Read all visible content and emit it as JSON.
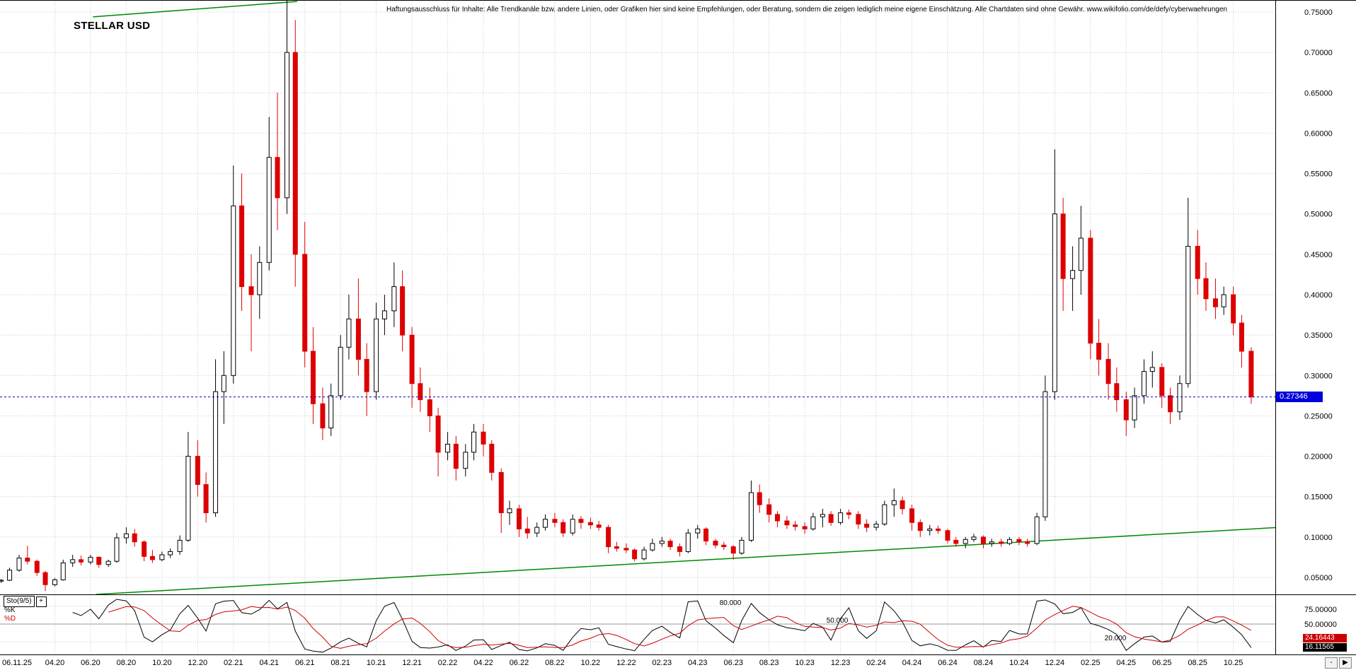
{
  "header": {
    "title": "STELLAR USD",
    "disclaimer": "Haftungsausschluss für Inhalte: Alle Trendkanäle bzw. andere Linien, oder Grafiken hier sind keine Empfehlungen, oder Beratung, sondern die zeigen lediglich meine eigene Einschätzung. Alle Chartdaten sind ohne Gewähr. www.wikifolio.com/de/defy/cyberwaehrungen"
  },
  "price_axis": {
    "tick_labels": [
      "0.75000",
      "0.70000",
      "0.65000",
      "0.60000",
      "0.55000",
      "0.50000",
      "0.45000",
      "0.40000",
      "0.35000",
      "0.30000",
      "0.25000",
      "0.20000",
      "0.15000",
      "0.10000",
      "0.05000"
    ],
    "current_price_label": "0.27346"
  },
  "time_axis": {
    "first_label": "06.11.25",
    "tick_labels": [
      "04.20",
      "06.20",
      "08.20",
      "10.20",
      "12.20",
      "02.21",
      "04.21",
      "06.21",
      "08.21",
      "10.21",
      "12.21",
      "02.22",
      "04.22",
      "06.22",
      "08.22",
      "10.22",
      "12.22",
      "02.23",
      "04.23",
      "06.23",
      "08.23",
      "10.23",
      "12.23",
      "02.24",
      "04.24",
      "06.24",
      "08.24",
      "10.24",
      "12.24",
      "02.25",
      "04.25",
      "06.25",
      "08.25",
      "10.25"
    ],
    "minus_control": "-",
    "arrow_control": "▶"
  },
  "indicator_panel": {
    "name": "Sto(9/5)",
    "expand_button": "+",
    "k_label": "%K",
    "d_label": "%D",
    "level_labels": [
      "80.000",
      "50.000",
      "20.000"
    ],
    "axis_labels": [
      "75.00000",
      "50.00000"
    ],
    "d_value": "24.16443",
    "k_value": "16.11565"
  },
  "colors": {
    "up": "#000000",
    "down": "#dd0000",
    "grid": "#c8c8c8",
    "trend": "#008800",
    "hline": "#0000cc",
    "price_tag_bg": "#0000dd",
    "k_line": "#000000",
    "d_line": "#cc0000",
    "mid_line": "#999999"
  },
  "chart_data": {
    "type": "candlestick",
    "title": "STELLAR USD",
    "ylim": [
      0.029,
      0.765
    ],
    "x_origin": "2020-01-06",
    "hline": 0.27346,
    "grid": true,
    "legend_position": "none",
    "trendlines": [
      {
        "from": [
          "2020-06-05",
          0.744
        ],
        "to": [
          "2021-05-18",
          0.763
        ]
      },
      {
        "from": [
          "2020-06-10",
          0.029
        ],
        "to": [
          "2025-12-20",
          0.112
        ]
      }
    ],
    "indicator": {
      "type": "stochastic",
      "period": 9,
      "smooth": 5,
      "levels": [
        80,
        50,
        20
      ],
      "k_last": 16.11565,
      "d_last": 24.16443
    },
    "candles": [
      [
        "2020-01-01",
        0.0455,
        0.048,
        0.043,
        0.0465
      ],
      [
        "2020-01-15",
        0.0465,
        0.062,
        0.0455,
        0.059
      ],
      [
        "2020-02-01",
        0.059,
        0.078,
        0.057,
        0.074
      ],
      [
        "2020-02-15",
        0.074,
        0.089,
        0.066,
        0.07
      ],
      [
        "2020-03-01",
        0.07,
        0.072,
        0.052,
        0.056
      ],
      [
        "2020-03-15",
        0.056,
        0.058,
        0.033,
        0.041
      ],
      [
        "2020-04-01",
        0.041,
        0.049,
        0.039,
        0.047
      ],
      [
        "2020-04-15",
        0.047,
        0.072,
        0.046,
        0.068
      ],
      [
        "2020-05-01",
        0.068,
        0.078,
        0.063,
        0.072
      ],
      [
        "2020-05-15",
        0.072,
        0.077,
        0.065,
        0.069
      ],
      [
        "2020-06-01",
        0.069,
        0.078,
        0.066,
        0.075
      ],
      [
        "2020-06-15",
        0.075,
        0.076,
        0.062,
        0.066
      ],
      [
        "2020-07-01",
        0.066,
        0.072,
        0.063,
        0.07
      ],
      [
        "2020-07-15",
        0.07,
        0.105,
        0.068,
        0.099
      ],
      [
        "2020-08-01",
        0.099,
        0.112,
        0.092,
        0.104
      ],
      [
        "2020-08-15",
        0.104,
        0.11,
        0.088,
        0.094
      ],
      [
        "2020-09-01",
        0.094,
        0.096,
        0.07,
        0.076
      ],
      [
        "2020-09-15",
        0.076,
        0.084,
        0.068,
        0.072
      ],
      [
        "2020-10-01",
        0.072,
        0.082,
        0.07,
        0.078
      ],
      [
        "2020-10-15",
        0.078,
        0.086,
        0.074,
        0.082
      ],
      [
        "2020-11-01",
        0.082,
        0.102,
        0.078,
        0.096
      ],
      [
        "2020-11-15",
        0.096,
        0.23,
        0.094,
        0.2
      ],
      [
        "2020-12-01",
        0.2,
        0.22,
        0.15,
        0.165
      ],
      [
        "2020-12-15",
        0.165,
        0.18,
        0.118,
        0.13
      ],
      [
        "2021-01-01",
        0.13,
        0.32,
        0.125,
        0.28
      ],
      [
        "2021-01-15",
        0.28,
        0.33,
        0.24,
        0.3
      ],
      [
        "2021-02-01",
        0.3,
        0.56,
        0.29,
        0.51
      ],
      [
        "2021-02-15",
        0.51,
        0.55,
        0.38,
        0.41
      ],
      [
        "2021-03-01",
        0.41,
        0.45,
        0.33,
        0.4
      ],
      [
        "2021-03-15",
        0.4,
        0.46,
        0.37,
        0.44
      ],
      [
        "2021-04-01",
        0.44,
        0.62,
        0.43,
        0.57
      ],
      [
        "2021-04-15",
        0.57,
        0.65,
        0.48,
        0.52
      ],
      [
        "2021-05-01",
        0.52,
        0.79,
        0.5,
        0.7
      ],
      [
        "2021-05-15",
        0.7,
        0.74,
        0.41,
        0.45
      ],
      [
        "2021-06-01",
        0.45,
        0.49,
        0.31,
        0.33
      ],
      [
        "2021-06-15",
        0.33,
        0.36,
        0.24,
        0.265
      ],
      [
        "2021-07-01",
        0.265,
        0.285,
        0.22,
        0.235
      ],
      [
        "2021-07-15",
        0.235,
        0.29,
        0.225,
        0.275
      ],
      [
        "2021-08-01",
        0.275,
        0.35,
        0.27,
        0.335
      ],
      [
        "2021-08-15",
        0.335,
        0.4,
        0.32,
        0.37
      ],
      [
        "2021-09-01",
        0.37,
        0.42,
        0.3,
        0.32
      ],
      [
        "2021-09-15",
        0.32,
        0.34,
        0.25,
        0.28
      ],
      [
        "2021-10-01",
        0.28,
        0.39,
        0.27,
        0.37
      ],
      [
        "2021-10-15",
        0.37,
        0.4,
        0.35,
        0.38
      ],
      [
        "2021-11-01",
        0.38,
        0.44,
        0.36,
        0.41
      ],
      [
        "2021-11-15",
        0.41,
        0.43,
        0.33,
        0.35
      ],
      [
        "2021-12-01",
        0.35,
        0.36,
        0.26,
        0.29
      ],
      [
        "2021-12-15",
        0.29,
        0.31,
        0.255,
        0.27
      ],
      [
        "2022-01-01",
        0.27,
        0.285,
        0.23,
        0.25
      ],
      [
        "2022-01-15",
        0.25,
        0.26,
        0.175,
        0.205
      ],
      [
        "2022-02-01",
        0.205,
        0.23,
        0.195,
        0.215
      ],
      [
        "2022-02-15",
        0.215,
        0.225,
        0.17,
        0.185
      ],
      [
        "2022-03-01",
        0.185,
        0.215,
        0.175,
        0.205
      ],
      [
        "2022-03-15",
        0.205,
        0.24,
        0.195,
        0.23
      ],
      [
        "2022-04-01",
        0.23,
        0.24,
        0.2,
        0.215
      ],
      [
        "2022-04-15",
        0.215,
        0.22,
        0.17,
        0.18
      ],
      [
        "2022-05-01",
        0.18,
        0.185,
        0.105,
        0.13
      ],
      [
        "2022-05-15",
        0.13,
        0.145,
        0.115,
        0.135
      ],
      [
        "2022-06-01",
        0.135,
        0.14,
        0.1,
        0.11
      ],
      [
        "2022-06-15",
        0.11,
        0.125,
        0.098,
        0.105
      ],
      [
        "2022-07-01",
        0.105,
        0.118,
        0.1,
        0.112
      ],
      [
        "2022-07-15",
        0.112,
        0.128,
        0.108,
        0.122
      ],
      [
        "2022-08-01",
        0.122,
        0.13,
        0.112,
        0.118
      ],
      [
        "2022-08-15",
        0.118,
        0.122,
        0.1,
        0.105
      ],
      [
        "2022-09-01",
        0.105,
        0.128,
        0.102,
        0.122
      ],
      [
        "2022-09-15",
        0.122,
        0.126,
        0.11,
        0.118
      ],
      [
        "2022-10-01",
        0.118,
        0.124,
        0.11,
        0.115
      ],
      [
        "2022-10-15",
        0.115,
        0.12,
        0.108,
        0.112
      ],
      [
        "2022-11-01",
        0.112,
        0.115,
        0.08,
        0.088
      ],
      [
        "2022-11-15",
        0.088,
        0.094,
        0.082,
        0.086
      ],
      [
        "2022-12-01",
        0.086,
        0.092,
        0.08,
        0.084
      ],
      [
        "2022-12-15",
        0.084,
        0.086,
        0.07,
        0.073
      ],
      [
        "2023-01-01",
        0.073,
        0.088,
        0.071,
        0.084
      ],
      [
        "2023-01-15",
        0.084,
        0.098,
        0.082,
        0.092
      ],
      [
        "2023-02-01",
        0.092,
        0.1,
        0.088,
        0.095
      ],
      [
        "2023-02-15",
        0.095,
        0.098,
        0.084,
        0.088
      ],
      [
        "2023-03-01",
        0.088,
        0.092,
        0.076,
        0.082
      ],
      [
        "2023-03-15",
        0.082,
        0.11,
        0.08,
        0.105
      ],
      [
        "2023-04-01",
        0.105,
        0.115,
        0.098,
        0.11
      ],
      [
        "2023-04-15",
        0.11,
        0.112,
        0.09,
        0.095
      ],
      [
        "2023-05-01",
        0.095,
        0.098,
        0.086,
        0.09
      ],
      [
        "2023-05-15",
        0.09,
        0.094,
        0.084,
        0.088
      ],
      [
        "2023-06-01",
        0.088,
        0.09,
        0.072,
        0.08
      ],
      [
        "2023-06-15",
        0.08,
        0.1,
        0.078,
        0.096
      ],
      [
        "2023-07-01",
        0.096,
        0.17,
        0.094,
        0.155
      ],
      [
        "2023-07-15",
        0.155,
        0.165,
        0.13,
        0.14
      ],
      [
        "2023-08-01",
        0.14,
        0.148,
        0.118,
        0.128
      ],
      [
        "2023-08-15",
        0.128,
        0.132,
        0.112,
        0.12
      ],
      [
        "2023-09-01",
        0.12,
        0.126,
        0.11,
        0.115
      ],
      [
        "2023-09-15",
        0.115,
        0.12,
        0.108,
        0.113
      ],
      [
        "2023-10-01",
        0.113,
        0.118,
        0.104,
        0.11
      ],
      [
        "2023-10-15",
        0.11,
        0.13,
        0.108,
        0.125
      ],
      [
        "2023-11-01",
        0.125,
        0.135,
        0.112,
        0.128
      ],
      [
        "2023-11-15",
        0.128,
        0.132,
        0.114,
        0.118
      ],
      [
        "2023-12-01",
        0.118,
        0.135,
        0.115,
        0.13
      ],
      [
        "2023-12-15",
        0.13,
        0.134,
        0.122,
        0.128
      ],
      [
        "2024-01-01",
        0.128,
        0.132,
        0.11,
        0.116
      ],
      [
        "2024-01-15",
        0.116,
        0.122,
        0.106,
        0.112
      ],
      [
        "2024-02-01",
        0.112,
        0.12,
        0.108,
        0.116
      ],
      [
        "2024-02-15",
        0.116,
        0.145,
        0.114,
        0.14
      ],
      [
        "2024-03-01",
        0.14,
        0.16,
        0.125,
        0.145
      ],
      [
        "2024-03-15",
        0.145,
        0.15,
        0.128,
        0.135
      ],
      [
        "2024-04-01",
        0.135,
        0.14,
        0.108,
        0.118
      ],
      [
        "2024-04-15",
        0.118,
        0.122,
        0.1,
        0.108
      ],
      [
        "2024-05-01",
        0.108,
        0.115,
        0.102,
        0.11
      ],
      [
        "2024-05-15",
        0.11,
        0.114,
        0.104,
        0.108
      ],
      [
        "2024-06-01",
        0.108,
        0.11,
        0.092,
        0.096
      ],
      [
        "2024-06-15",
        0.096,
        0.1,
        0.088,
        0.092
      ],
      [
        "2024-07-01",
        0.092,
        0.1,
        0.086,
        0.097
      ],
      [
        "2024-07-15",
        0.097,
        0.104,
        0.094,
        0.1
      ],
      [
        "2024-08-01",
        0.1,
        0.102,
        0.086,
        0.092
      ],
      [
        "2024-08-15",
        0.092,
        0.098,
        0.088,
        0.094
      ],
      [
        "2024-09-01",
        0.094,
        0.098,
        0.088,
        0.092
      ],
      [
        "2024-09-15",
        0.092,
        0.1,
        0.09,
        0.097
      ],
      [
        "2024-10-01",
        0.097,
        0.1,
        0.09,
        0.094
      ],
      [
        "2024-10-15",
        0.094,
        0.098,
        0.088,
        0.092
      ],
      [
        "2024-11-01",
        0.092,
        0.13,
        0.09,
        0.125
      ],
      [
        "2024-11-15",
        0.125,
        0.3,
        0.12,
        0.28
      ],
      [
        "2024-12-01",
        0.28,
        0.58,
        0.27,
        0.5
      ],
      [
        "2024-12-15",
        0.5,
        0.52,
        0.38,
        0.42
      ],
      [
        "2025-01-01",
        0.42,
        0.46,
        0.38,
        0.43
      ],
      [
        "2025-01-15",
        0.43,
        0.51,
        0.4,
        0.47
      ],
      [
        "2025-02-01",
        0.47,
        0.48,
        0.32,
        0.34
      ],
      [
        "2025-02-15",
        0.34,
        0.37,
        0.3,
        0.32
      ],
      [
        "2025-03-01",
        0.32,
        0.34,
        0.27,
        0.29
      ],
      [
        "2025-03-15",
        0.29,
        0.31,
        0.255,
        0.27
      ],
      [
        "2025-04-01",
        0.27,
        0.28,
        0.225,
        0.245
      ],
      [
        "2025-04-15",
        0.245,
        0.285,
        0.235,
        0.275
      ],
      [
        "2025-05-01",
        0.275,
        0.32,
        0.265,
        0.305
      ],
      [
        "2025-05-15",
        0.305,
        0.33,
        0.285,
        0.31
      ],
      [
        "2025-06-01",
        0.31,
        0.315,
        0.26,
        0.275
      ],
      [
        "2025-06-15",
        0.275,
        0.285,
        0.24,
        0.255
      ],
      [
        "2025-07-01",
        0.255,
        0.3,
        0.245,
        0.29
      ],
      [
        "2025-07-15",
        0.29,
        0.52,
        0.285,
        0.46
      ],
      [
        "2025-08-01",
        0.46,
        0.48,
        0.4,
        0.42
      ],
      [
        "2025-08-15",
        0.42,
        0.44,
        0.38,
        0.395
      ],
      [
        "2025-09-01",
        0.395,
        0.42,
        0.37,
        0.385
      ],
      [
        "2025-09-15",
        0.385,
        0.41,
        0.375,
        0.4
      ],
      [
        "2025-10-01",
        0.4,
        0.41,
        0.35,
        0.365
      ],
      [
        "2025-10-15",
        0.365,
        0.375,
        0.31,
        0.33
      ],
      [
        "2025-11-01",
        0.33,
        0.335,
        0.265,
        0.27346
      ]
    ]
  }
}
